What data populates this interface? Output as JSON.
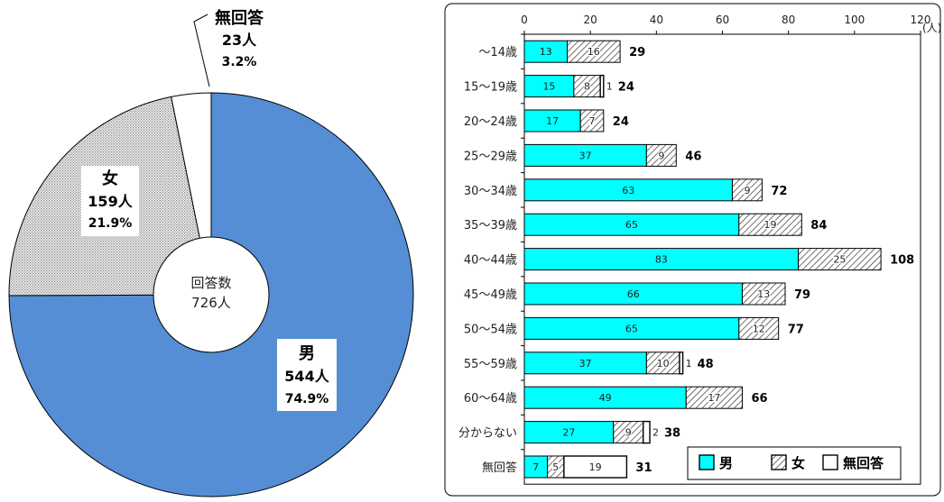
{
  "chart_data": [
    {
      "type": "pie",
      "center_label": [
        "回答数",
        "726人"
      ],
      "slices": [
        {
          "name": "男",
          "count_label": "544人",
          "percent_label": "74.9%",
          "value": 544,
          "color": "#558ed5",
          "pattern": "solid"
        },
        {
          "name": "女",
          "count_label": "159人",
          "percent_label": "21.9%",
          "value": 159,
          "color": "#d9d9d9",
          "pattern": "dots"
        },
        {
          "name": "無回答",
          "count_label": "23人",
          "percent_label": "3.2%",
          "value": 23,
          "color": "#ffffff",
          "pattern": "none"
        }
      ]
    },
    {
      "type": "bar",
      "orientation": "horizontal",
      "stacked": true,
      "unit": "(人)",
      "xlim": [
        0,
        120
      ],
      "x_ticks": [
        "0",
        "20",
        "40",
        "60",
        "80",
        "100",
        "120"
      ],
      "categories": [
        "～14歳",
        "15～19歳",
        "20～24歳",
        "25～29歳",
        "30～34歳",
        "35～39歳",
        "40～44歳",
        "45～49歳",
        "50～54歳",
        "55～59歳",
        "60～64歳",
        "分からない",
        "無回答"
      ],
      "series": [
        {
          "name": "男",
          "color": "#00ffff",
          "pattern": "solid",
          "values": [
            13,
            15,
            17,
            37,
            63,
            65,
            83,
            66,
            65,
            37,
            49,
            27,
            7
          ]
        },
        {
          "name": "女",
          "color": "#ffffff",
          "pattern": "hatch",
          "values": [
            16,
            8,
            7,
            9,
            9,
            19,
            25,
            13,
            12,
            10,
            17,
            9,
            5
          ]
        },
        {
          "name": "無回答",
          "color": "#ffffff",
          "pattern": "none",
          "values": [
            0,
            1,
            0,
            0,
            0,
            0,
            0,
            0,
            0,
            1,
            0,
            2,
            19
          ]
        }
      ],
      "totals": [
        29,
        24,
        24,
        46,
        72,
        84,
        108,
        79,
        77,
        48,
        66,
        38,
        31
      ],
      "legend": [
        "男",
        "女",
        "無回答"
      ],
      "legend_position": "bottom-right"
    }
  ]
}
